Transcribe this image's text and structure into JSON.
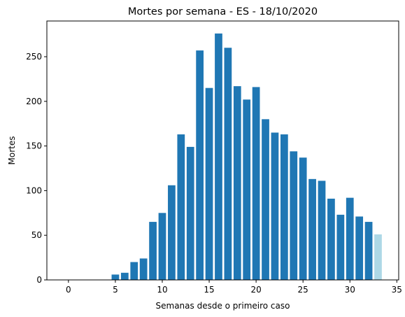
{
  "chart_data": {
    "type": "bar",
    "title": "Mortes por semana - ES - 18/10/2020",
    "xlabel": "Semanas desde o primeiro caso",
    "ylabel": "Mortes",
    "xlim": [
      -2.3,
      35.2
    ],
    "ylim": [
      0,
      290
    ],
    "xticks": [
      0,
      5,
      10,
      15,
      20,
      25,
      30,
      35
    ],
    "yticks": [
      0,
      50,
      100,
      150,
      200,
      250
    ],
    "grid": false,
    "colors": {
      "bar": "#1f77b4",
      "bar_partial": "#add8e6"
    },
    "series": [
      {
        "x": [
          0,
          1,
          2,
          3,
          4,
          5,
          6,
          7,
          8,
          9,
          10,
          11,
          12,
          13,
          14,
          15,
          16,
          17,
          18,
          19,
          20,
          21,
          22,
          23,
          24,
          25,
          26,
          27,
          28,
          29,
          30,
          31,
          32,
          33
        ],
        "values": [
          0,
          0,
          0,
          0,
          0,
          6,
          8,
          20,
          24,
          65,
          75,
          106,
          163,
          149,
          257,
          215,
          276,
          260,
          217,
          202,
          216,
          180,
          165,
          163,
          144,
          137,
          113,
          111,
          91,
          73,
          92,
          71,
          65,
          51
        ],
        "partial_last": true
      }
    ]
  }
}
